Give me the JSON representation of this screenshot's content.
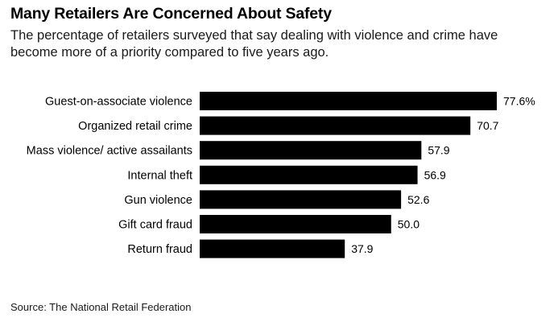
{
  "title": "Many Retailers Are Concerned About Safety",
  "subtitle": "The percentage of retailers surveyed that say dealing with violence and crime have become more of a priority compared to five years ago.",
  "source": "Source: The National Retail Federation",
  "chart_data": {
    "type": "bar",
    "orientation": "horizontal",
    "categories": [
      "Guest-on-associate violence",
      "Organized retail crime",
      "Mass violence/ active assailants",
      "Internal theft",
      "Gun violence",
      "Gift card fraud",
      "Return fraud"
    ],
    "values": [
      77.6,
      70.7,
      57.9,
      56.9,
      52.6,
      50.0,
      37.9
    ],
    "value_labels": [
      "77.6%",
      "70.7",
      "57.9",
      "56.9",
      "52.6",
      "50.0",
      "37.9"
    ],
    "xlim": [
      0,
      77.6
    ],
    "grid": false,
    "bar_color": "#000000"
  }
}
